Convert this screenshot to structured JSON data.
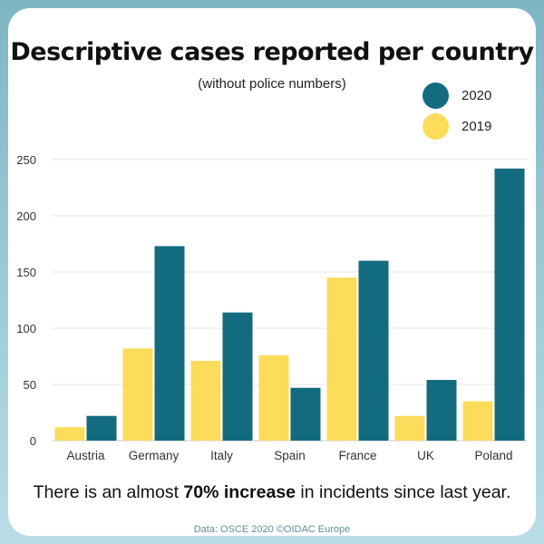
{
  "title": "Descriptive cases reported per country",
  "subtitle": "(without police numbers)",
  "footnote": {
    "before": "There is an almost ",
    "highlight": "70% increase",
    "after": " in incidents since last year."
  },
  "source": "Data: OSCE 2020  ©OIDAC Europe",
  "colors": {
    "series_2020": "#136b80",
    "series_2019": "#fddc5c",
    "grid": "#e6e6e6",
    "axis_text": "#333333"
  },
  "chart_data": {
    "type": "bar",
    "title": "Descriptive cases reported per country",
    "subtitle": "(without police numbers)",
    "categories": [
      "Austria",
      "Germany",
      "Italy",
      "Spain",
      "France",
      "UK",
      "Poland"
    ],
    "series": [
      {
        "name": "2019",
        "values": [
          12,
          82,
          71,
          76,
          145,
          22,
          35
        ]
      },
      {
        "name": "2020",
        "values": [
          22,
          173,
          114,
          47,
          160,
          54,
          242
        ]
      }
    ],
    "ylim": [
      0,
      250
    ],
    "yticks": [
      0,
      50,
      100,
      150,
      200,
      250
    ],
    "grid": true,
    "legend_position": "top-right",
    "legend": [
      "2020",
      "2019"
    ]
  }
}
